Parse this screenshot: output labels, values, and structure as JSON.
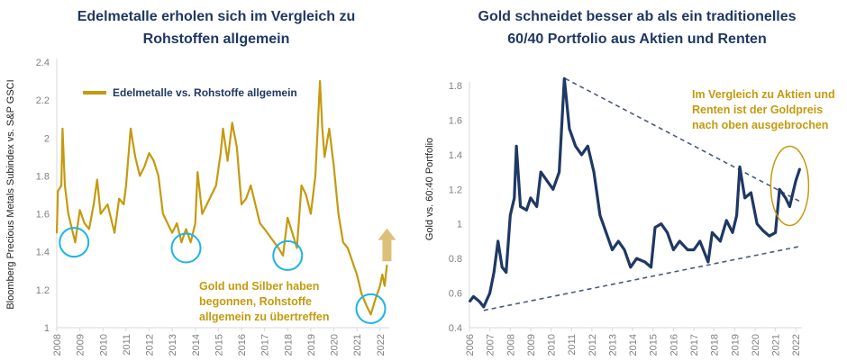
{
  "colors": {
    "gold": "#c59a0e",
    "navy": "#1f3864",
    "cyan": "#1eb4e6",
    "arrow": "#dcc07a",
    "trend": "#4a5a80"
  },
  "chart_data": [
    {
      "type": "line",
      "title": [
        "Edelmetalle erholen sich im Vergleich zu",
        "Rohstoffen allgemein"
      ],
      "ylabel": "Bloomberg Precious Metals Subindex vs. S&P GSCI",
      "xlabel": "",
      "xlim": [
        2008,
        2022.4
      ],
      "ylim": [
        1,
        2.4
      ],
      "yticks": [
        "1",
        "1.2",
        "1.4",
        "1.6",
        "1.8",
        "2",
        "2.2",
        "2.4"
      ],
      "xticks": [
        "2008",
        "2009",
        "2010",
        "2011",
        "2012",
        "2013",
        "2014",
        "2015",
        "2016",
        "2017",
        "2018",
        "2019",
        "2020",
        "2021",
        "2022"
      ],
      "grid": false,
      "legend": {
        "placement": "top-left",
        "entries": [
          "Edelmetalle vs. Rohstoffe allgemein"
        ]
      },
      "series": [
        {
          "name": "Edelmetalle vs. Rohstoffe allgemein",
          "color": "#c59a0e",
          "x": [
            2008.0,
            2008.05,
            2008.2,
            2008.25,
            2008.35,
            2008.5,
            2008.7,
            2008.8,
            2009.0,
            2009.2,
            2009.4,
            2009.6,
            2009.75,
            2009.9,
            2010.2,
            2010.5,
            2010.7,
            2010.9,
            2011.0,
            2011.2,
            2011.4,
            2011.6,
            2011.8,
            2012.0,
            2012.2,
            2012.4,
            2012.6,
            2012.8,
            2013.0,
            2013.2,
            2013.4,
            2013.6,
            2013.8,
            2014.0,
            2014.1,
            2014.3,
            2014.5,
            2014.7,
            2014.9,
            2015.1,
            2015.2,
            2015.4,
            2015.6,
            2015.8,
            2016.0,
            2016.2,
            2016.4,
            2016.6,
            2016.8,
            2017.0,
            2017.3,
            2017.6,
            2017.8,
            2018.0,
            2018.2,
            2018.4,
            2018.6,
            2018.8,
            2019.0,
            2019.2,
            2019.4,
            2019.5,
            2019.6,
            2019.8,
            2020.0,
            2020.2,
            2020.4,
            2020.6,
            2020.8,
            2021.0,
            2021.2,
            2021.4,
            2021.6,
            2021.8,
            2022.0,
            2022.1,
            2022.2,
            2022.3
          ],
          "y": [
            1.5,
            1.72,
            1.75,
            2.05,
            1.75,
            1.6,
            1.5,
            1.45,
            1.62,
            1.55,
            1.52,
            1.65,
            1.78,
            1.6,
            1.65,
            1.5,
            1.68,
            1.65,
            1.75,
            2.05,
            1.9,
            1.8,
            1.85,
            1.92,
            1.88,
            1.8,
            1.6,
            1.55,
            1.5,
            1.55,
            1.45,
            1.52,
            1.45,
            1.55,
            1.82,
            1.6,
            1.65,
            1.7,
            1.75,
            1.92,
            2.05,
            1.88,
            2.08,
            1.95,
            1.65,
            1.68,
            1.75,
            1.65,
            1.55,
            1.52,
            1.47,
            1.42,
            1.38,
            1.58,
            1.5,
            1.42,
            1.75,
            1.7,
            1.6,
            1.8,
            2.3,
            2.05,
            1.9,
            2.05,
            1.85,
            1.6,
            1.45,
            1.42,
            1.35,
            1.28,
            1.18,
            1.12,
            1.07,
            1.15,
            1.22,
            1.28,
            1.22,
            1.33
          ]
        }
      ],
      "highlight_circles": [
        {
          "x": 2008.75,
          "y": 1.45
        },
        {
          "x": 2013.6,
          "y": 1.42
        },
        {
          "x": 2018.0,
          "y": 1.38
        },
        {
          "x": 2021.6,
          "y": 1.1
        }
      ],
      "arrow": {
        "x": 2022.3,
        "y_from": 1.35,
        "y_to": 1.5,
        "direction": "up"
      },
      "annotation": [
        "Gold und Silber haben",
        "begonnen, Rohstoffe",
        "allgemein zu übertreffen"
      ]
    },
    {
      "type": "line",
      "title": [
        "Gold schneidet besser ab als ein traditionelles",
        "60/40 Portfolio aus Aktien und Renten"
      ],
      "ylabel": "Gold vs. 60:40 Portfolio",
      "xlabel": "",
      "xlim": [
        2006,
        2022.3
      ],
      "ylim": [
        0.4,
        1.8
      ],
      "yticks": [
        "0.4",
        "0.6",
        "0.8",
        "1",
        "1.2",
        "1.4",
        "1.6",
        "1.8"
      ],
      "xticks": [
        "2006",
        "2007",
        "2008",
        "2009",
        "2010",
        "2011",
        "2012",
        "2013",
        "2014",
        "2015",
        "2016",
        "2017",
        "2018",
        "2019",
        "2020",
        "2021",
        "2022"
      ],
      "grid": false,
      "series": [
        {
          "color": "#1f3864",
          "x": [
            2006.0,
            2006.2,
            2006.5,
            2006.7,
            2007.0,
            2007.2,
            2007.4,
            2007.6,
            2007.8,
            2008.0,
            2008.2,
            2008.3,
            2008.5,
            2008.8,
            2009.0,
            2009.3,
            2009.5,
            2009.8,
            2010.1,
            2010.4,
            2010.65,
            2010.9,
            2011.2,
            2011.5,
            2011.8,
            2012.1,
            2012.4,
            2012.7,
            2013.0,
            2013.3,
            2013.6,
            2013.9,
            2014.2,
            2014.6,
            2014.9,
            2015.1,
            2015.4,
            2015.7,
            2016.0,
            2016.3,
            2016.7,
            2017.0,
            2017.3,
            2017.7,
            2017.9,
            2018.3,
            2018.6,
            2018.9,
            2019.1,
            2019.25,
            2019.5,
            2019.8,
            2020.1,
            2020.4,
            2020.7,
            2021.0,
            2021.2,
            2021.5,
            2021.7,
            2021.9,
            2022.0,
            2022.2
          ],
          "y": [
            0.55,
            0.58,
            0.55,
            0.52,
            0.6,
            0.72,
            0.9,
            0.75,
            0.72,
            1.05,
            1.15,
            1.45,
            1.1,
            1.08,
            1.15,
            1.1,
            1.3,
            1.25,
            1.2,
            1.3,
            1.84,
            1.55,
            1.45,
            1.4,
            1.45,
            1.3,
            1.05,
            0.95,
            0.85,
            0.9,
            0.85,
            0.75,
            0.8,
            0.78,
            0.75,
            0.98,
            1.0,
            0.95,
            0.85,
            0.9,
            0.85,
            0.85,
            0.9,
            0.78,
            0.95,
            0.9,
            1.02,
            0.95,
            1.05,
            1.33,
            1.15,
            1.18,
            1.0,
            0.96,
            0.93,
            0.95,
            1.2,
            1.15,
            1.1,
            1.2,
            1.25,
            1.32
          ]
        }
      ],
      "trendlines": [
        {
          "style": "dashed",
          "from": [
            2010.7,
            1.84
          ],
          "to": [
            2022.2,
            1.13
          ]
        },
        {
          "style": "dashed",
          "from": [
            2006.7,
            0.5
          ],
          "to": [
            2022.2,
            0.87
          ]
        }
      ],
      "highlight_ellipse": {
        "x": 2021.7,
        "y": 1.22,
        "color": "#c59a0e"
      },
      "annotation": [
        "Im Vergleich zu Aktien und",
        "Renten ist der Goldpreis",
        "nach oben ausgebrochen"
      ]
    }
  ]
}
